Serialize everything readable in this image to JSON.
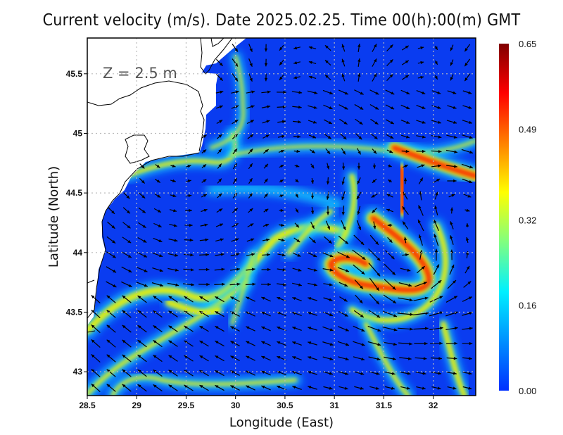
{
  "title": "Current velocity (m/s). Date 2025.02.25. Time 00(h):00(m) GMT",
  "depth_label": "Z = 2.5 m",
  "x_axis": {
    "label": "Longitude (East)",
    "range": [
      28.5,
      32.43
    ],
    "ticks": [
      "28.5",
      "29",
      "29.5",
      "30",
      "30.5",
      "31",
      "31.5",
      "32"
    ]
  },
  "y_axis": {
    "label": "Latitude (North)",
    "range": [
      42.8,
      45.8
    ],
    "ticks": [
      "43",
      "43.5",
      "44",
      "44.5",
      "45",
      "45.5"
    ]
  },
  "grid": "dotted",
  "colorbar": {
    "ticks": [
      "0.00",
      "0.16",
      "0.32",
      "0.49",
      "0.65"
    ],
    "range": [
      0.0,
      0.65
    ],
    "colormap": "jet",
    "colors": [
      "#0030ff",
      "#0090ff",
      "#00f0ff",
      "#80ff80",
      "#ffff00",
      "#ff8000",
      "#ff0000",
      "#800000"
    ]
  },
  "colors": {
    "sea_background": "#0a3cf0",
    "land": "#ffffff",
    "coastline": "#000000",
    "arrows": "#000000"
  }
}
